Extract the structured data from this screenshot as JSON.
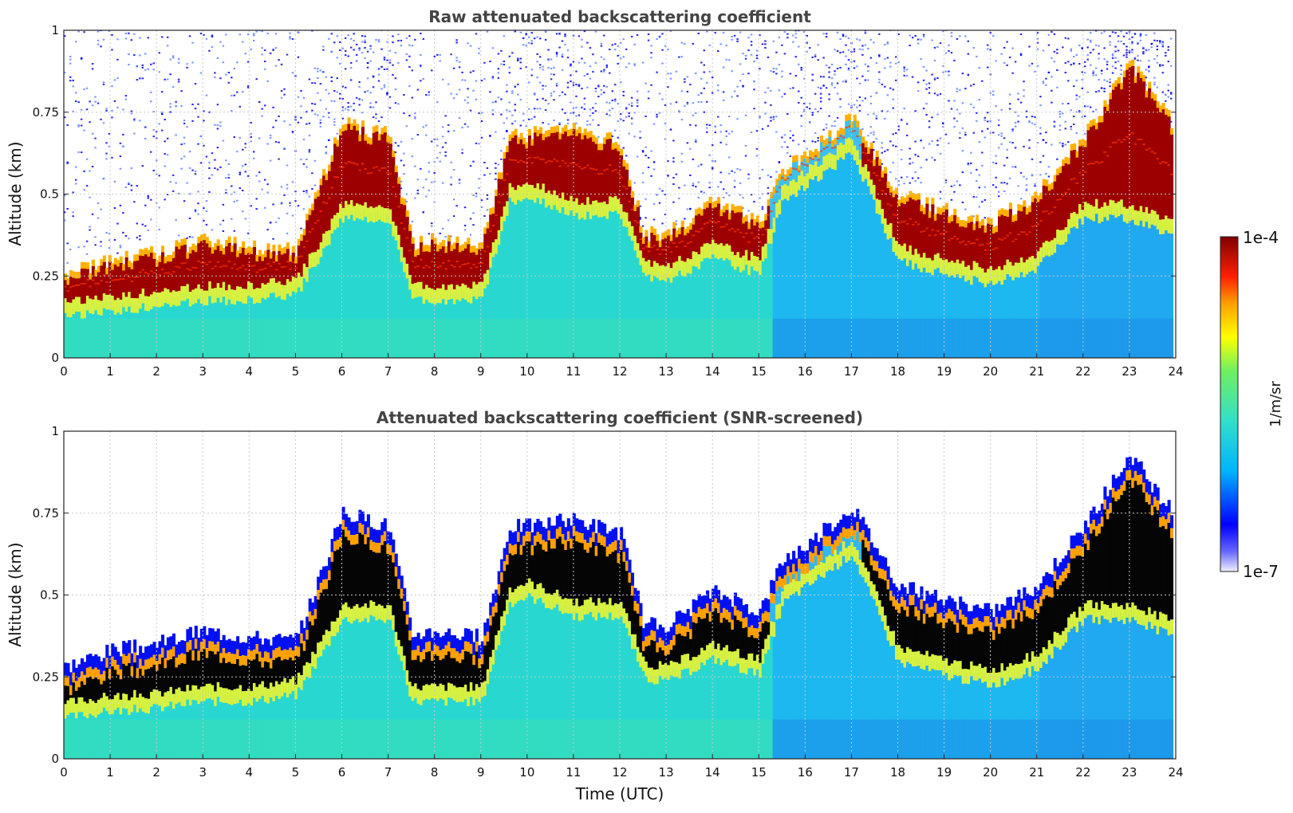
{
  "chart_data": [
    {
      "type": "heatmap",
      "title": "Raw attenuated backscattering coefficient",
      "xlabel": "",
      "ylabel": "Altitude (km)",
      "xlim": [
        0,
        24
      ],
      "ylim": [
        0,
        1
      ],
      "x_ticks": [
        "0",
        "1",
        "2",
        "3",
        "4",
        "5",
        "6",
        "7",
        "8",
        "9",
        "10",
        "11",
        "12",
        "13",
        "14",
        "15",
        "16",
        "17",
        "18",
        "19",
        "20",
        "21",
        "22",
        "23",
        "24"
      ],
      "y_ticks": [
        "0",
        "0.25",
        "0.5",
        "0.75",
        "1"
      ],
      "grid": true,
      "screened": false,
      "layer_top_km": [
        [
          0,
          0.25
        ],
        [
          1,
          0.3
        ],
        [
          2,
          0.32
        ],
        [
          3,
          0.36
        ],
        [
          4,
          0.34
        ],
        [
          5,
          0.33
        ],
        [
          6,
          0.72
        ],
        [
          7,
          0.68
        ],
        [
          7.5,
          0.35
        ],
        [
          8,
          0.36
        ],
        [
          9,
          0.34
        ],
        [
          9.6,
          0.68
        ],
        [
          10,
          0.68
        ],
        [
          11,
          0.7
        ],
        [
          12,
          0.66
        ],
        [
          12.5,
          0.38
        ],
        [
          13,
          0.38
        ],
        [
          14,
          0.48
        ],
        [
          15,
          0.42
        ],
        [
          15.5,
          0.58
        ],
        [
          16,
          0.62
        ],
        [
          17,
          0.74
        ],
        [
          18,
          0.5
        ],
        [
          19,
          0.45
        ],
        [
          20,
          0.42
        ],
        [
          21,
          0.5
        ],
        [
          22,
          0.68
        ],
        [
          23,
          0.9
        ],
        [
          23.9,
          0.72
        ]
      ],
      "layer_base_km": [
        [
          0,
          0.15
        ],
        [
          1,
          0.17
        ],
        [
          2,
          0.18
        ],
        [
          3,
          0.2
        ],
        [
          4,
          0.2
        ],
        [
          5,
          0.22
        ],
        [
          6,
          0.45
        ],
        [
          7,
          0.45
        ],
        [
          7.5,
          0.2
        ],
        [
          8,
          0.2
        ],
        [
          9,
          0.2
        ],
        [
          9.6,
          0.5
        ],
        [
          10,
          0.52
        ],
        [
          11,
          0.46
        ],
        [
          12,
          0.46
        ],
        [
          12.5,
          0.27
        ],
        [
          13,
          0.26
        ],
        [
          14,
          0.33
        ],
        [
          15,
          0.28
        ],
        [
          15.5,
          0.5
        ],
        [
          16,
          0.55
        ],
        [
          17,
          0.65
        ],
        [
          18,
          0.32
        ],
        [
          19,
          0.28
        ],
        [
          20,
          0.25
        ],
        [
          21,
          0.3
        ],
        [
          22,
          0.45
        ],
        [
          23,
          0.45
        ],
        [
          23.9,
          0.4
        ]
      ]
    },
    {
      "type": "heatmap",
      "title": "Attenuated backscattering coefficient (SNR-screened)",
      "xlabel": "Time (UTC)",
      "ylabel": "Altitude (km)",
      "xlim": [
        0,
        24
      ],
      "ylim": [
        0,
        1
      ],
      "x_ticks": [
        "0",
        "1",
        "2",
        "3",
        "4",
        "5",
        "6",
        "7",
        "8",
        "9",
        "10",
        "11",
        "12",
        "13",
        "14",
        "15",
        "16",
        "17",
        "18",
        "19",
        "20",
        "21",
        "22",
        "23",
        "24"
      ],
      "y_ticks": [
        "0",
        "0.25",
        "0.5",
        "0.75",
        "1"
      ],
      "grid": true,
      "screened": true
    }
  ],
  "colorbar": {
    "min_label": "1e-7",
    "max_label": "1e-4",
    "unit": "1/m/sr",
    "scale": "log",
    "colors": [
      "#f0f0ff",
      "#0000ff",
      "#00c8ff",
      "#30e8c0",
      "#ffff00",
      "#ff6000",
      "#d00000",
      "#800000"
    ]
  }
}
